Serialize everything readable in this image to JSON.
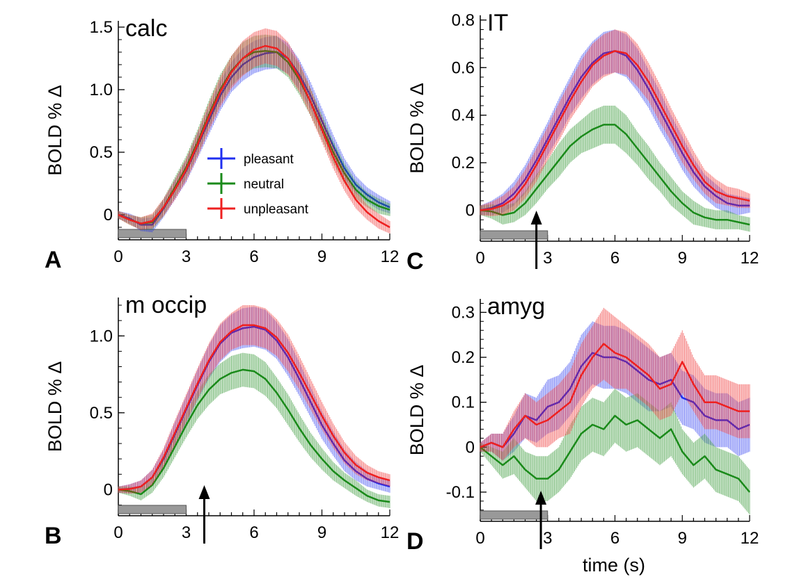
{
  "colors": {
    "pleasant": "#1f2ff0",
    "neutral": "#1a8a1a",
    "unpleasant": "#ee2020",
    "stim_bar": "#999999"
  },
  "legend": {
    "placement": "inside panel A, center-bottom",
    "entries": [
      {
        "key": "pleasant",
        "label": "pleasant"
      },
      {
        "key": "neutral",
        "label": "neutral"
      },
      {
        "key": "unpleasant",
        "label": "unpleasant"
      }
    ]
  },
  "xlabel": "time (s)",
  "chart_data": [
    {
      "id": "A",
      "type": "line",
      "title": "calc",
      "letter": "A",
      "ylabel": "BOLD % Δ",
      "xlim": [
        0,
        12
      ],
      "ylim": [
        -0.2,
        1.55
      ],
      "xticks": [
        0,
        3,
        6,
        9,
        12
      ],
      "xtick_labels": [
        "0",
        "3",
        "6",
        "9",
        "12"
      ],
      "yticks": [
        0,
        0.5,
        1.0,
        1.5
      ],
      "ytick_labels": [
        "0",
        "0.5",
        "1.0",
        "1.5"
      ],
      "stimulus": [
        0,
        3
      ],
      "arrow_x": null,
      "x": [
        0,
        0.5,
        1,
        1.5,
        2,
        2.5,
        3,
        3.5,
        4,
        4.5,
        5,
        5.5,
        6,
        6.5,
        7,
        7.5,
        8,
        8.5,
        9,
        9.5,
        10,
        10.5,
        11,
        11.5,
        12
      ],
      "series": [
        {
          "name": "pleasant",
          "color_key": "pleasant",
          "values": [
            0,
            -0.03,
            -0.08,
            -0.08,
            0.05,
            0.2,
            0.35,
            0.55,
            0.75,
            0.95,
            1.1,
            1.2,
            1.26,
            1.29,
            1.3,
            1.25,
            1.12,
            0.95,
            0.75,
            0.55,
            0.37,
            0.24,
            0.16,
            0.1,
            0.06
          ],
          "error": [
            0.03,
            0.04,
            0.05,
            0.06,
            0.07,
            0.08,
            0.09,
            0.1,
            0.11,
            0.12,
            0.12,
            0.13,
            0.13,
            0.13,
            0.13,
            0.12,
            0.12,
            0.11,
            0.1,
            0.09,
            0.08,
            0.07,
            0.06,
            0.06,
            0.05
          ]
        },
        {
          "name": "neutral",
          "color_key": "neutral",
          "values": [
            0,
            -0.04,
            -0.07,
            -0.06,
            0.06,
            0.22,
            0.38,
            0.58,
            0.8,
            1.0,
            1.15,
            1.25,
            1.3,
            1.31,
            1.3,
            1.22,
            1.08,
            0.9,
            0.7,
            0.5,
            0.33,
            0.2,
            0.12,
            0.07,
            0.04
          ],
          "error": [
            0.03,
            0.04,
            0.05,
            0.06,
            0.07,
            0.08,
            0.09,
            0.1,
            0.11,
            0.12,
            0.12,
            0.13,
            0.13,
            0.13,
            0.13,
            0.12,
            0.12,
            0.11,
            0.1,
            0.09,
            0.08,
            0.07,
            0.06,
            0.06,
            0.05
          ]
        },
        {
          "name": "unpleasant",
          "color_key": "unpleasant",
          "values": [
            0,
            -0.04,
            -0.07,
            -0.05,
            0.06,
            0.2,
            0.36,
            0.56,
            0.78,
            0.98,
            1.14,
            1.25,
            1.32,
            1.35,
            1.33,
            1.25,
            1.1,
            0.9,
            0.68,
            0.46,
            0.27,
            0.12,
            0.02,
            -0.05,
            -0.1
          ],
          "error": [
            0.03,
            0.04,
            0.05,
            0.06,
            0.07,
            0.08,
            0.09,
            0.1,
            0.11,
            0.12,
            0.13,
            0.14,
            0.14,
            0.14,
            0.14,
            0.13,
            0.12,
            0.11,
            0.1,
            0.09,
            0.08,
            0.07,
            0.06,
            0.06,
            0.05
          ]
        }
      ]
    },
    {
      "id": "B",
      "type": "line",
      "title": "m occip",
      "letter": "B",
      "ylabel": "BOLD % Δ",
      "xlim": [
        0,
        12
      ],
      "ylim": [
        -0.17,
        1.25
      ],
      "xticks": [
        0,
        3,
        6,
        9,
        12
      ],
      "xtick_labels": [
        "0",
        "3",
        "6",
        "9",
        "12"
      ],
      "yticks": [
        0,
        0.5,
        1.0
      ],
      "ytick_labels": [
        "0",
        "0.5",
        "1.0"
      ],
      "stimulus": [
        0,
        3
      ],
      "arrow_x": 3.8,
      "x": [
        0,
        0.5,
        1,
        1.5,
        2,
        2.5,
        3,
        3.5,
        4,
        4.5,
        5,
        5.5,
        6,
        6.5,
        7,
        7.5,
        8,
        8.5,
        9,
        9.5,
        10,
        10.5,
        11,
        11.5,
        12
      ],
      "series": [
        {
          "name": "pleasant",
          "color_key": "pleasant",
          "values": [
            0,
            0.005,
            0.02,
            0.08,
            0.2,
            0.36,
            0.52,
            0.68,
            0.83,
            0.95,
            1.02,
            1.05,
            1.06,
            1.04,
            0.97,
            0.86,
            0.72,
            0.57,
            0.42,
            0.3,
            0.19,
            0.12,
            0.07,
            0.04,
            0.02
          ],
          "error": [
            0.02,
            0.03,
            0.04,
            0.05,
            0.06,
            0.08,
            0.09,
            0.1,
            0.11,
            0.12,
            0.12,
            0.13,
            0.13,
            0.13,
            0.12,
            0.12,
            0.11,
            0.1,
            0.09,
            0.08,
            0.07,
            0.06,
            0.05,
            0.04,
            0.04
          ]
        },
        {
          "name": "neutral",
          "color_key": "neutral",
          "values": [
            0,
            -0.01,
            -0.03,
            0.03,
            0.14,
            0.28,
            0.42,
            0.55,
            0.65,
            0.72,
            0.76,
            0.78,
            0.77,
            0.72,
            0.63,
            0.52,
            0.4,
            0.29,
            0.2,
            0.12,
            0.06,
            0.01,
            -0.04,
            -0.07,
            -0.08
          ],
          "error": [
            0.02,
            0.03,
            0.04,
            0.05,
            0.06,
            0.07,
            0.08,
            0.09,
            0.1,
            0.1,
            0.11,
            0.11,
            0.11,
            0.11,
            0.1,
            0.1,
            0.09,
            0.08,
            0.07,
            0.06,
            0.05,
            0.05,
            0.04,
            0.04,
            0.04
          ]
        },
        {
          "name": "unpleasant",
          "color_key": "unpleasant",
          "values": [
            0,
            0.004,
            0.02,
            0.08,
            0.21,
            0.37,
            0.53,
            0.69,
            0.84,
            0.96,
            1.03,
            1.07,
            1.07,
            1.05,
            0.99,
            0.89,
            0.76,
            0.62,
            0.48,
            0.35,
            0.24,
            0.16,
            0.11,
            0.08,
            0.06
          ],
          "error": [
            0.02,
            0.03,
            0.04,
            0.05,
            0.06,
            0.08,
            0.09,
            0.1,
            0.11,
            0.12,
            0.12,
            0.13,
            0.13,
            0.13,
            0.12,
            0.12,
            0.11,
            0.1,
            0.09,
            0.08,
            0.07,
            0.06,
            0.05,
            0.04,
            0.04
          ]
        }
      ]
    },
    {
      "id": "C",
      "type": "line",
      "title": "IT",
      "letter": "C",
      "ylabel": "BOLD % Δ",
      "xlim": [
        0,
        12
      ],
      "ylim": [
        -0.13,
        0.82
      ],
      "xticks": [
        0,
        3,
        6,
        9,
        12
      ],
      "xtick_labels": [
        "0",
        "3",
        "6",
        "9",
        "12"
      ],
      "yticks": [
        0,
        0.2,
        0.4,
        0.6,
        0.8
      ],
      "ytick_labels": [
        "0",
        "0.2",
        "0.4",
        "0.6",
        "0.8"
      ],
      "stimulus": [
        0,
        3
      ],
      "arrow_x": 2.5,
      "x": [
        0,
        0.5,
        1,
        1.5,
        2,
        2.5,
        3,
        3.5,
        4,
        4.5,
        5,
        5.5,
        6,
        6.5,
        7,
        7.5,
        8,
        8.5,
        9,
        9.5,
        10,
        10.5,
        11,
        11.5,
        12
      ],
      "series": [
        {
          "name": "pleasant",
          "color_key": "pleasant",
          "values": [
            0,
            0.01,
            0.03,
            0.07,
            0.13,
            0.21,
            0.3,
            0.39,
            0.48,
            0.56,
            0.62,
            0.66,
            0.67,
            0.65,
            0.59,
            0.51,
            0.42,
            0.33,
            0.24,
            0.16,
            0.1,
            0.06,
            0.03,
            0.02,
            0.02
          ],
          "error": [
            0.02,
            0.03,
            0.04,
            0.05,
            0.06,
            0.07,
            0.07,
            0.08,
            0.08,
            0.09,
            0.09,
            0.09,
            0.09,
            0.09,
            0.09,
            0.08,
            0.08,
            0.07,
            0.07,
            0.06,
            0.05,
            0.05,
            0.04,
            0.04,
            0.03
          ]
        },
        {
          "name": "neutral",
          "color_key": "neutral",
          "values": [
            0,
            -0.005,
            -0.02,
            -0.01,
            0.03,
            0.09,
            0.15,
            0.21,
            0.27,
            0.31,
            0.34,
            0.36,
            0.36,
            0.32,
            0.26,
            0.2,
            0.14,
            0.08,
            0.03,
            -0.01,
            -0.03,
            -0.04,
            -0.04,
            -0.05,
            -0.06
          ],
          "error": [
            0.02,
            0.03,
            0.04,
            0.04,
            0.05,
            0.06,
            0.06,
            0.07,
            0.07,
            0.07,
            0.08,
            0.08,
            0.08,
            0.08,
            0.07,
            0.07,
            0.06,
            0.06,
            0.05,
            0.05,
            0.04,
            0.04,
            0.04,
            0.03,
            0.03
          ]
        },
        {
          "name": "unpleasant",
          "color_key": "unpleasant",
          "values": [
            0,
            0.005,
            0.02,
            0.05,
            0.11,
            0.19,
            0.28,
            0.37,
            0.46,
            0.54,
            0.61,
            0.65,
            0.67,
            0.66,
            0.61,
            0.54,
            0.45,
            0.36,
            0.27,
            0.19,
            0.12,
            0.08,
            0.06,
            0.05,
            0.04
          ],
          "error": [
            0.02,
            0.03,
            0.04,
            0.05,
            0.06,
            0.07,
            0.07,
            0.08,
            0.08,
            0.09,
            0.09,
            0.09,
            0.09,
            0.09,
            0.09,
            0.08,
            0.08,
            0.07,
            0.07,
            0.06,
            0.05,
            0.05,
            0.04,
            0.04,
            0.03
          ]
        }
      ]
    },
    {
      "id": "D",
      "type": "line",
      "title": "amyg",
      "letter": "D",
      "ylabel": "BOLD % Δ",
      "xlabel_shown": true,
      "xlim": [
        0,
        12
      ],
      "ylim": [
        -0.165,
        0.33
      ],
      "xticks": [
        0,
        3,
        6,
        9,
        12
      ],
      "xtick_labels": [
        "0",
        "3",
        "6",
        "9",
        "12"
      ],
      "yticks": [
        -0.1,
        0,
        0.1,
        0.2,
        0.3
      ],
      "ytick_labels": [
        "-0.1",
        "0",
        "0.1",
        "0.2",
        "0.3"
      ],
      "stimulus": [
        0,
        3
      ],
      "arrow_x": 2.7,
      "x": [
        0,
        0.5,
        1,
        1.5,
        2,
        2.5,
        3,
        3.5,
        4,
        4.5,
        5,
        5.5,
        6,
        6.5,
        7,
        7.5,
        8,
        8.5,
        9,
        9.5,
        10,
        10.5,
        11,
        11.5,
        12
      ],
      "series": [
        {
          "name": "pleasant",
          "color_key": "pleasant",
          "values": [
            0,
            0.01,
            0.0,
            0.03,
            0.07,
            0.06,
            0.09,
            0.1,
            0.13,
            0.18,
            0.21,
            0.2,
            0.2,
            0.19,
            0.17,
            0.15,
            0.14,
            0.15,
            0.11,
            0.1,
            0.07,
            0.06,
            0.06,
            0.04,
            0.05
          ],
          "error": [
            0.01,
            0.02,
            0.03,
            0.04,
            0.05,
            0.05,
            0.06,
            0.06,
            0.06,
            0.07,
            0.07,
            0.07,
            0.07,
            0.07,
            0.07,
            0.07,
            0.06,
            0.06,
            0.06,
            0.06,
            0.06,
            0.06,
            0.06,
            0.06,
            0.06
          ]
        },
        {
          "name": "neutral",
          "color_key": "neutral",
          "values": [
            0,
            -0.02,
            -0.04,
            -0.02,
            -0.05,
            -0.07,
            -0.07,
            -0.05,
            -0.01,
            0.03,
            0.05,
            0.04,
            0.07,
            0.05,
            0.06,
            0.04,
            0.02,
            0.04,
            -0.01,
            -0.04,
            -0.02,
            -0.05,
            -0.06,
            -0.07,
            -0.1
          ],
          "error": [
            0.01,
            0.02,
            0.03,
            0.04,
            0.04,
            0.05,
            0.05,
            0.05,
            0.06,
            0.06,
            0.06,
            0.06,
            0.06,
            0.06,
            0.06,
            0.06,
            0.06,
            0.06,
            0.05,
            0.05,
            0.05,
            0.05,
            0.05,
            0.05,
            0.05
          ]
        },
        {
          "name": "unpleasant",
          "color_key": "unpleasant",
          "values": [
            0,
            0.01,
            0.0,
            0.04,
            0.07,
            0.05,
            0.06,
            0.08,
            0.1,
            0.16,
            0.2,
            0.23,
            0.21,
            0.2,
            0.18,
            0.16,
            0.13,
            0.14,
            0.19,
            0.14,
            0.1,
            0.1,
            0.09,
            0.08,
            0.08
          ],
          "error": [
            0.01,
            0.02,
            0.03,
            0.04,
            0.05,
            0.05,
            0.06,
            0.06,
            0.07,
            0.07,
            0.07,
            0.08,
            0.08,
            0.07,
            0.07,
            0.07,
            0.07,
            0.07,
            0.07,
            0.06,
            0.06,
            0.06,
            0.06,
            0.06,
            0.06
          ]
        }
      ]
    }
  ]
}
